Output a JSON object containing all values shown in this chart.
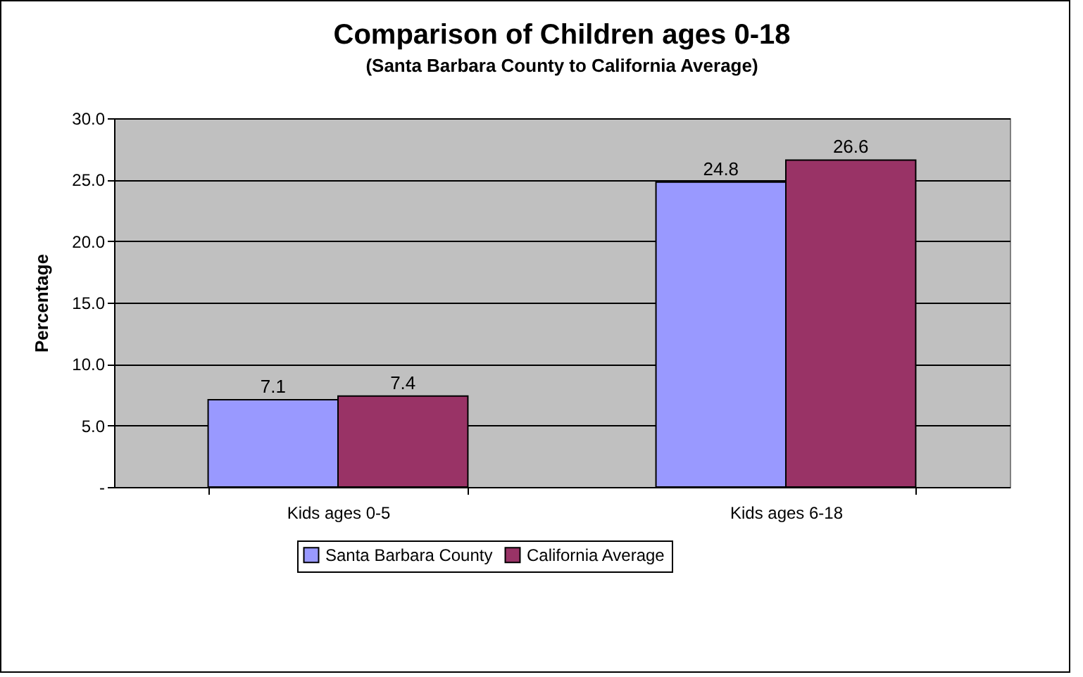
{
  "chart_data": {
    "type": "bar",
    "title": "Comparison of Children ages 0-18",
    "subtitle": "(Santa Barbara County to California Average)",
    "ylabel": "Percentage",
    "categories": [
      "Kids ages 0-5",
      "Kids ages 6-18"
    ],
    "series": [
      {
        "name": "Santa Barbara County",
        "color": "#9999ff",
        "values": [
          7.1,
          24.8
        ]
      },
      {
        "name": "California Average",
        "color": "#993366",
        "values": [
          7.4,
          26.6
        ]
      }
    ],
    "ylim": [
      0,
      30
    ],
    "yticks": [
      {
        "value": 0,
        "label": "-"
      },
      {
        "value": 5,
        "label": "5.0"
      },
      {
        "value": 10,
        "label": "10.0"
      },
      {
        "value": 15,
        "label": "15.0"
      },
      {
        "value": 20,
        "label": "20.0"
      },
      {
        "value": 25,
        "label": "25.0"
      },
      {
        "value": 30,
        "label": "30.0"
      }
    ],
    "grid": "y",
    "legend": "bottom",
    "data_labels": true
  }
}
